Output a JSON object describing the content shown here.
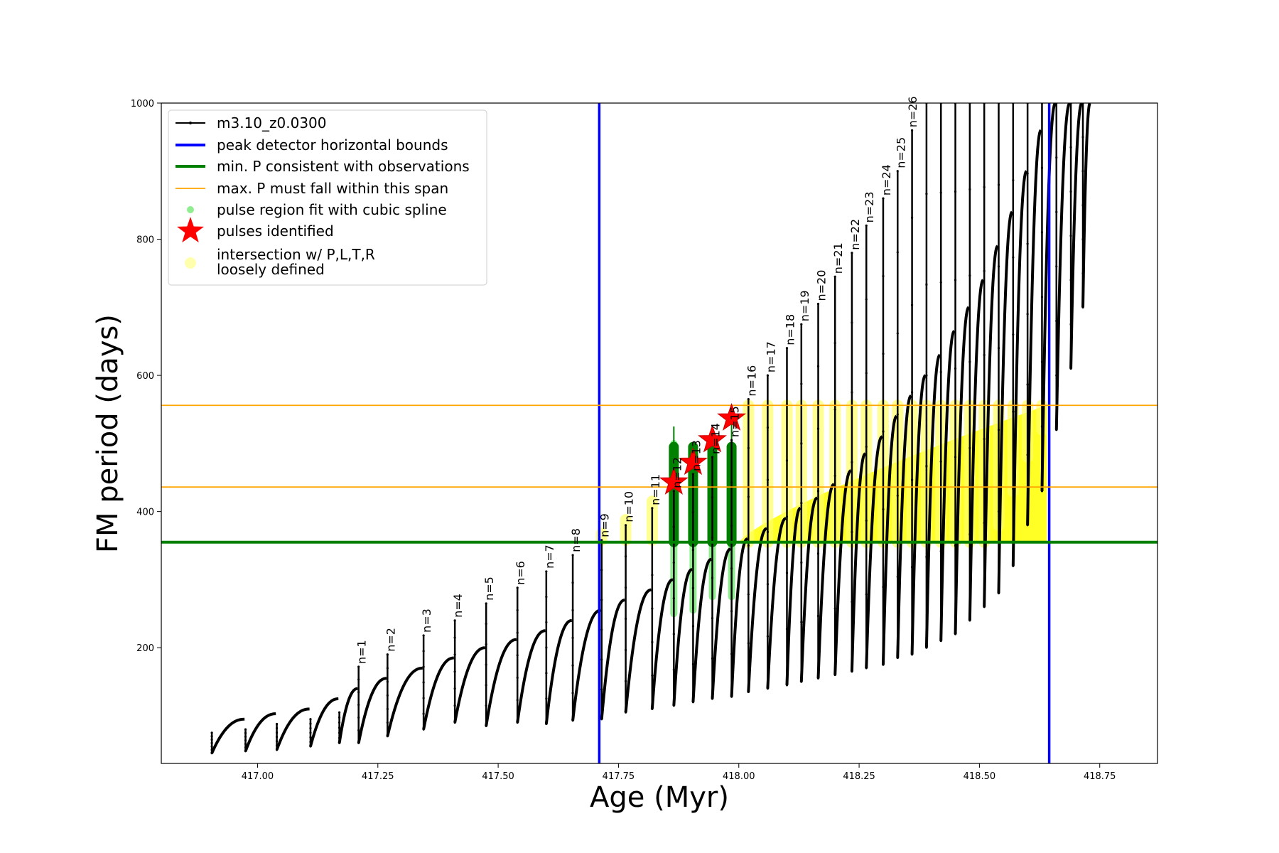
{
  "chart_data": {
    "type": "line",
    "xlabel": "Age (Myr)",
    "ylabel": "FM period (days)",
    "xlim": [
      416.8,
      418.87
    ],
    "ylim": [
      30,
      1000
    ],
    "xticks": [
      "417.00",
      "417.25",
      "417.50",
      "417.75",
      "418.00",
      "418.25",
      "418.50",
      "418.75"
    ],
    "xtick_values": [
      417.0,
      417.25,
      417.5,
      417.75,
      418.0,
      418.25,
      418.5,
      418.75
    ],
    "yticks": [
      "200",
      "400",
      "600",
      "800",
      "1000"
    ],
    "ytick_values": [
      200,
      400,
      600,
      800,
      1000
    ],
    "grid": false,
    "legend_position": "upper-left",
    "legend": [
      {
        "label": "m3.10_z0.0300",
        "kind": "line-marker",
        "color": "#000000"
      },
      {
        "label": "peak detector horizontal bounds",
        "kind": "line",
        "color": "#0000ff"
      },
      {
        "label": "min. P consistent with observations",
        "kind": "line",
        "color": "#008000"
      },
      {
        "label": "max. P must fall within this span",
        "kind": "thin-line",
        "color": "#ffa500"
      },
      {
        "label": "pulse region fit with cubic spline",
        "kind": "dot",
        "color": "#90ee90"
      },
      {
        "label": "pulses identified",
        "kind": "star",
        "color": "#ff0000"
      },
      {
        "label": "intersection w/ P,L,T,R",
        "label2": "loosely defined",
        "kind": "big-dot",
        "color": "#ffff99"
      }
    ],
    "vertical_bounds": [
      417.71,
      418.645
    ],
    "min_P": 355,
    "max_P_span": [
      436,
      556
    ],
    "series": [
      {
        "name": "m3.10_z0.0300",
        "pulses": [
          {
            "x": 416.905,
            "start": 75,
            "drop": 45,
            "peak": 95
          },
          {
            "x": 416.975,
            "start": 80,
            "drop": 48,
            "peak": 103
          },
          {
            "x": 417.04,
            "start": 88,
            "drop": 50,
            "peak": 110
          },
          {
            "x": 417.11,
            "start": 95,
            "drop": 55,
            "peak": 125
          },
          {
            "x": 417.17,
            "start": 105,
            "drop": 60,
            "peak": 140
          },
          {
            "x": 417.21,
            "start": 172,
            "drop": 60,
            "peak": 155
          },
          {
            "x": 417.27,
            "start": 190,
            "drop": 70,
            "peak": 170
          },
          {
            "x": 417.345,
            "start": 218,
            "drop": 80,
            "peak": 185
          },
          {
            "x": 417.41,
            "start": 240,
            "drop": 90,
            "peak": 200
          },
          {
            "x": 417.475,
            "start": 265,
            "drop": 85,
            "peak": 212
          },
          {
            "x": 417.54,
            "start": 288,
            "drop": 90,
            "peak": 225
          },
          {
            "x": 417.6,
            "start": 312,
            "drop": 88,
            "peak": 240
          },
          {
            "x": 417.655,
            "start": 336,
            "drop": 93,
            "peak": 255
          },
          {
            "x": 417.715,
            "start": 358,
            "drop": 95,
            "peak": 270
          },
          {
            "x": 417.765,
            "start": 380,
            "drop": 105,
            "peak": 285
          },
          {
            "x": 417.82,
            "start": 405,
            "drop": 110,
            "peak": 300
          },
          {
            "x": 417.865,
            "start": 430,
            "drop": 115,
            "peak": 315
          },
          {
            "x": 417.905,
            "start": 455,
            "drop": 120,
            "peak": 330
          },
          {
            "x": 417.945,
            "start": 480,
            "drop": 125,
            "peak": 345
          },
          {
            "x": 417.985,
            "start": 505,
            "drop": 128,
            "peak": 360
          },
          {
            "x": 418.02,
            "start": 565,
            "drop": 135,
            "peak": 375
          },
          {
            "x": 418.06,
            "start": 600,
            "drop": 140,
            "peak": 390
          },
          {
            "x": 418.1,
            "start": 640,
            "drop": 145,
            "peak": 405
          },
          {
            "x": 418.13,
            "start": 675,
            "drop": 150,
            "peak": 420
          },
          {
            "x": 418.165,
            "start": 705,
            "drop": 155,
            "peak": 440
          },
          {
            "x": 418.2,
            "start": 745,
            "drop": 160,
            "peak": 460
          },
          {
            "x": 418.235,
            "start": 780,
            "drop": 165,
            "peak": 485
          },
          {
            "x": 418.265,
            "start": 820,
            "drop": 170,
            "peak": 510
          },
          {
            "x": 418.3,
            "start": 860,
            "drop": 175,
            "peak": 540
          },
          {
            "x": 418.33,
            "start": 900,
            "drop": 185,
            "peak": 570
          },
          {
            "x": 418.36,
            "start": 960,
            "drop": 190,
            "peak": 600
          },
          {
            "x": 418.39,
            "start": 1000,
            "drop": 200,
            "peak": 630
          },
          {
            "x": 418.42,
            "start": 1000,
            "drop": 210,
            "peak": 665
          },
          {
            "x": 418.45,
            "start": 1000,
            "drop": 220,
            "peak": 700
          },
          {
            "x": 418.48,
            "start": 1000,
            "drop": 240,
            "peak": 740
          },
          {
            "x": 418.51,
            "start": 1000,
            "drop": 260,
            "peak": 790
          },
          {
            "x": 418.54,
            "start": 1000,
            "drop": 280,
            "peak": 840
          },
          {
            "x": 418.57,
            "start": 1000,
            "drop": 320,
            "peak": 900
          },
          {
            "x": 418.6,
            "start": 1000,
            "drop": 380,
            "peak": 960
          },
          {
            "x": 418.63,
            "start": 1000,
            "drop": 430,
            "peak": 1000
          },
          {
            "x": 418.66,
            "start": 1000,
            "drop": 520,
            "peak": 1000
          },
          {
            "x": 418.69,
            "start": 1000,
            "drop": 610,
            "peak": 1000
          },
          {
            "x": 418.715,
            "start": 1000,
            "drop": 700,
            "peak": 1000
          }
        ]
      }
    ],
    "pulse_labels": [
      {
        "text": "n=1",
        "x": 417.21,
        "y": 172
      },
      {
        "text": "n=2",
        "x": 417.27,
        "y": 190
      },
      {
        "text": "n=3",
        "x": 417.345,
        "y": 218
      },
      {
        "text": "n=4",
        "x": 417.41,
        "y": 240
      },
      {
        "text": "n=5",
        "x": 417.475,
        "y": 265
      },
      {
        "text": "n=6",
        "x": 417.54,
        "y": 288
      },
      {
        "text": "n=7",
        "x": 417.6,
        "y": 312
      },
      {
        "text": "n=8",
        "x": 417.655,
        "y": 336
      },
      {
        "text": "n=9",
        "x": 417.715,
        "y": 358
      },
      {
        "text": "n=10",
        "x": 417.765,
        "y": 380
      },
      {
        "text": "n=11",
        "x": 417.82,
        "y": 405
      },
      {
        "text": "n=12",
        "x": 417.865,
        "y": 430
      },
      {
        "text": "n=13",
        "x": 417.905,
        "y": 455
      },
      {
        "text": "n=14",
        "x": 417.945,
        "y": 480
      },
      {
        "text": "n=15",
        "x": 417.985,
        "y": 505
      },
      {
        "text": "n=16",
        "x": 418.02,
        "y": 565
      },
      {
        "text": "n=17",
        "x": 418.06,
        "y": 600
      },
      {
        "text": "n=18",
        "x": 418.1,
        "y": 640
      },
      {
        "text": "n=19",
        "x": 418.13,
        "y": 675
      },
      {
        "text": "n=20",
        "x": 418.165,
        "y": 705
      },
      {
        "text": "n=21",
        "x": 418.2,
        "y": 745
      },
      {
        "text": "n=22",
        "x": 418.235,
        "y": 780
      },
      {
        "text": "n=23",
        "x": 418.265,
        "y": 820
      },
      {
        "text": "n=24",
        "x": 418.3,
        "y": 860
      },
      {
        "text": "n=25",
        "x": 418.33,
        "y": 900
      },
      {
        "text": "n=26",
        "x": 418.355,
        "y": 960
      }
    ],
    "cubic_spline_regions": [
      {
        "x": 417.865,
        "ymin": 250,
        "ymax": 500
      },
      {
        "x": 417.905,
        "ymin": 255,
        "ymax": 495
      },
      {
        "x": 417.945,
        "ymin": 275,
        "ymax": 495
      },
      {
        "x": 417.985,
        "ymin": 275,
        "ymax": 495
      }
    ],
    "green_fill_regions": [
      {
        "x": 417.865,
        "ymin": 355,
        "ymax": 495,
        "top": 525
      },
      {
        "x": 417.905,
        "ymin": 355,
        "ymax": 495,
        "top": 470
      },
      {
        "x": 417.945,
        "ymin": 355,
        "ymax": 495,
        "top": 505
      },
      {
        "x": 417.985,
        "ymin": 355,
        "ymax": 495,
        "top": 540
      }
    ],
    "pulses_identified": [
      {
        "x": 417.865,
        "y": 443
      },
      {
        "x": 417.905,
        "y": 472
      },
      {
        "x": 417.945,
        "y": 505
      },
      {
        "x": 417.985,
        "y": 537
      }
    ],
    "intersection_regions": [
      {
        "x": 417.715,
        "ymin": 358,
        "ymax": 368
      },
      {
        "x": 417.765,
        "ymin": 358,
        "ymax": 388
      },
      {
        "x": 417.82,
        "ymin": 358,
        "ymax": 415
      },
      {
        "x": 418.02,
        "ymin": 355,
        "ymax": 556
      },
      {
        "x": 418.06,
        "ymin": 355,
        "ymax": 556
      },
      {
        "x": 418.1,
        "ymin": 355,
        "ymax": 556
      },
      {
        "x": 418.13,
        "ymin": 355,
        "ymax": 556
      },
      {
        "x": 418.165,
        "ymin": 355,
        "ymax": 556
      },
      {
        "x": 418.2,
        "ymin": 355,
        "ymax": 556
      },
      {
        "x": 418.235,
        "ymin": 355,
        "ymax": 556
      },
      {
        "x": 418.265,
        "ymin": 355,
        "ymax": 556
      },
      {
        "x": 418.3,
        "ymin": 355,
        "ymax": 556
      },
      {
        "x": 418.33,
        "ymin": 355,
        "ymax": 556
      },
      {
        "x": 418.36,
        "ymin": 355,
        "ymax": 556
      },
      {
        "x": 418.39,
        "ymin": 355,
        "ymax": 556
      },
      {
        "x": 418.42,
        "ymin": 355,
        "ymax": 556
      },
      {
        "x": 418.45,
        "ymin": 355,
        "ymax": 556
      },
      {
        "x": 418.48,
        "ymin": 355,
        "ymax": 556
      },
      {
        "x": 418.51,
        "ymin": 355,
        "ymax": 556
      },
      {
        "x": 418.54,
        "ymin": 380,
        "ymax": 556
      },
      {
        "x": 418.57,
        "ymin": 430,
        "ymax": 556
      },
      {
        "x": 418.6,
        "ymin": 480,
        "ymax": 556
      },
      {
        "x": 418.63,
        "ymin": 520,
        "ymax": 556
      }
    ],
    "intersection_band": {
      "x_start": 418.0,
      "x_end": 418.64,
      "y_low_start": 355,
      "y_low_end": 556
    }
  }
}
